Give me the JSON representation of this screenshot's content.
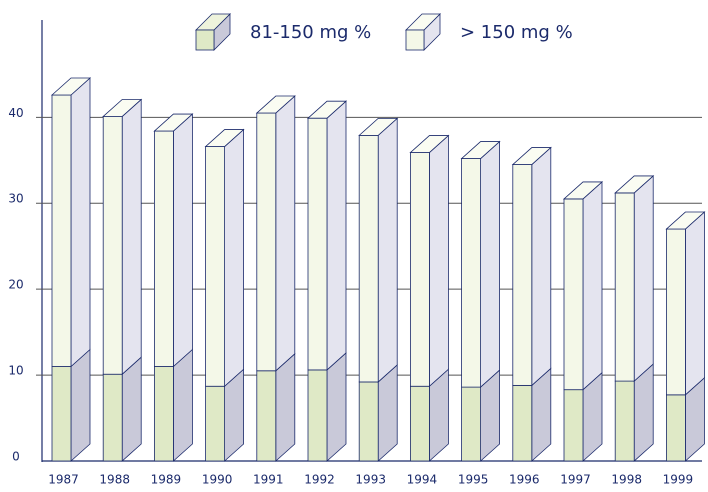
{
  "chart_data": {
    "type": "bar3d_stacked",
    "categories": [
      "1987",
      "1988",
      "1989",
      "1990",
      "1991",
      "1992",
      "1993",
      "1994",
      "1995",
      "1996",
      "1997",
      "1998",
      "1999"
    ],
    "series": [
      {
        "name": "81-150 mg %",
        "color": "#dfe9c6",
        "values": [
          11.0,
          10.1,
          11.0,
          8.7,
          10.5,
          10.6,
          9.2,
          8.7,
          8.6,
          8.8,
          8.3,
          9.3,
          7.7
        ]
      },
      {
        "name": "> 150 mg %",
        "color": "#f4f8e8",
        "values": [
          31.6,
          30.0,
          27.4,
          27.9,
          30.0,
          29.3,
          28.7,
          27.2,
          26.6,
          25.7,
          22.2,
          21.9,
          19.3
        ]
      }
    ],
    "ylim": [
      0,
      49
    ],
    "yticks": [
      0,
      10,
      20,
      30,
      40
    ],
    "grid": true
  }
}
